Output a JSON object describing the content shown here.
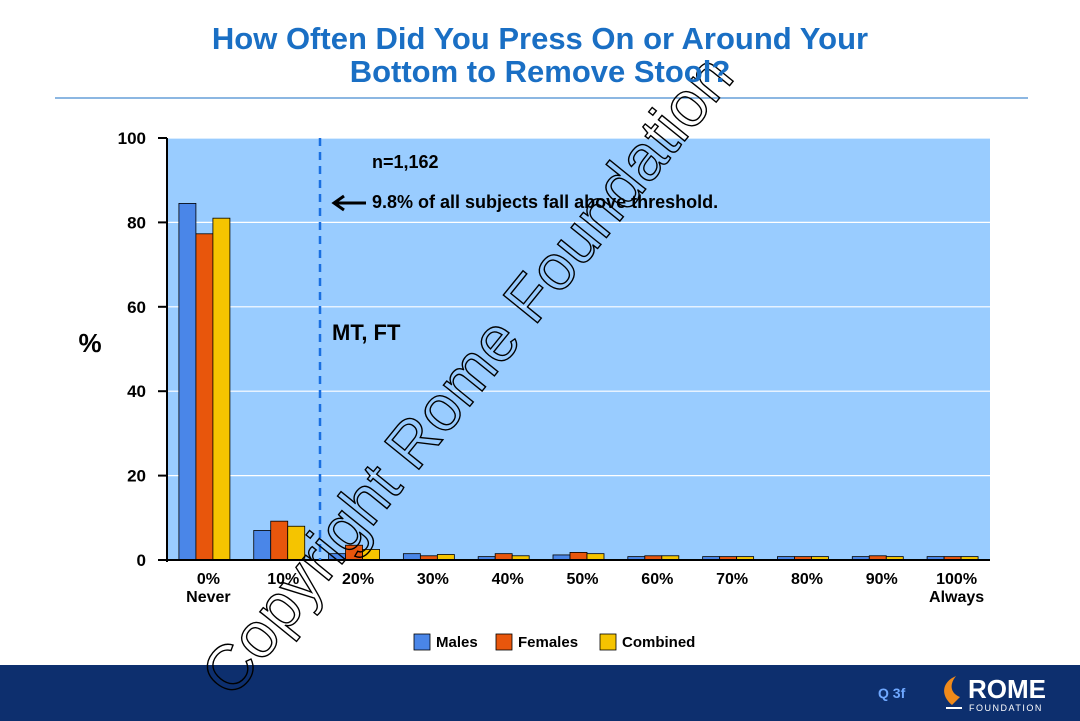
{
  "chart_data": {
    "type": "bar",
    "title": "How Often Did You Press On or Around Your\nBottom to Remove Stool?",
    "y_label": "%",
    "categories": [
      "0%\nNever",
      "10%",
      "20%",
      "30%",
      "40%",
      "50%",
      "60%",
      "70%",
      "80%",
      "90%",
      "100%\nAlways"
    ],
    "series": [
      {
        "name": "Males",
        "color": "#4a86e8",
        "values": [
          84.5,
          7,
          1.5,
          1.5,
          0.8,
          1.2,
          0.8,
          0.8,
          0.8,
          0.8,
          0.8
        ]
      },
      {
        "name": "Females",
        "color": "#e8560c",
        "values": [
          77.3,
          9.2,
          3.5,
          1,
          1.5,
          1.8,
          1,
          0.8,
          0.8,
          1,
          0.8
        ]
      },
      {
        "name": "Combined",
        "color": "#f5c400",
        "values": [
          81,
          8,
          2.5,
          1.3,
          1,
          1.5,
          1,
          0.8,
          0.8,
          0.8,
          0.8
        ]
      }
    ],
    "ylim": [
      0,
      100
    ],
    "yticks": [
      0,
      20,
      40,
      60,
      80,
      100
    ],
    "grid": true,
    "annotations": [
      "n=1,162",
      "9.8% of all subjects fall above threshold.",
      "MT, FT"
    ],
    "watermark": "Copyright Rome Foundation",
    "footer": {
      "code": "Q 3f",
      "logo": "ROME",
      "logo_sub": "FOUNDATION"
    }
  }
}
